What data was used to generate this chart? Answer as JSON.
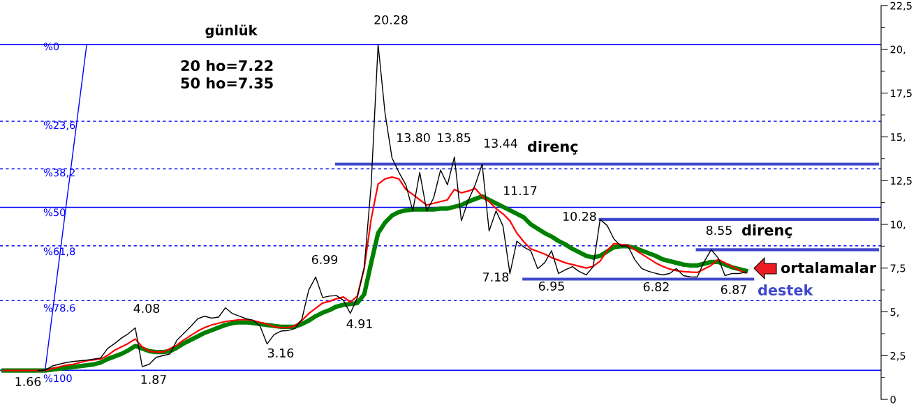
{
  "chart_data": {
    "type": "line",
    "title": "günlük",
    "categories": [
      null,
      null,
      null,
      null,
      null,
      null,
      null,
      null,
      null,
      null,
      null,
      null,
      null,
      null,
      null,
      null,
      null,
      null,
      null,
      null,
      null,
      null,
      null,
      null,
      null,
      null,
      null,
      null,
      null,
      null,
      null,
      null,
      null,
      null,
      null,
      null,
      null,
      null,
      null,
      null,
      null,
      null,
      null,
      null,
      null,
      null,
      null,
      null,
      null,
      null,
      null,
      null,
      null,
      null,
      null,
      null,
      null,
      null,
      null,
      null,
      null,
      null,
      null,
      null,
      null,
      null,
      null,
      null,
      null,
      null,
      null,
      null,
      null,
      null,
      null,
      null,
      null,
      null,
      null,
      null,
      null,
      null,
      null,
      null,
      null,
      null,
      null,
      null,
      null,
      null,
      null,
      null,
      null,
      null,
      null,
      null,
      null,
      null,
      null,
      null,
      null,
      null,
      null,
      null,
      null,
      null,
      null,
      null,
      null,
      null,
      null,
      null,
      null,
      null,
      null,
      null,
      null,
      null,
      null,
      null,
      null,
      null,
      null,
      null,
      null,
      null,
      null
    ],
    "annotations": [
      "%0",
      "%23,6",
      "%38,2",
      "%50",
      "%61,8",
      "%78.6",
      "%100",
      "20 ho=7.22",
      "50 ho=7.35",
      "direnç",
      "direnç",
      "ortalamalar",
      "destek",
      "1.66",
      "4.08",
      "1.87",
      "3.16",
      "6.99",
      "4.91",
      "20.28",
      "13.80",
      "13.85",
      "13.44",
      "11.17",
      "7.18",
      "6.95",
      "10.28",
      "6.82",
      "8.55",
      "6.87"
    ],
    "ylim": [
      0,
      22.5
    ],
    "yticks": [
      0,
      {
        "value": 1.25,
        "label": null
      },
      {
        "value": 2.5,
        "label": "2,5"
      },
      {
        "value": 3.75,
        "label": null
      },
      {
        "value": 5,
        "label": "5,"
      },
      {
        "value": 6.25,
        "label": null
      },
      {
        "value": 7.5,
        "label": "7,5"
      },
      {
        "value": 8.75,
        "label": null
      },
      {
        "value": 10,
        "label": "10,"
      },
      {
        "value": 11.25,
        "label": null
      },
      {
        "value": 12.5,
        "label": "12,5"
      },
      {
        "value": 13.75,
        "label": null
      },
      {
        "value": 15,
        "label": "15,"
      },
      {
        "value": 16.25,
        "label": null
      },
      {
        "value": 17.5,
        "label": "17,5"
      },
      {
        "value": 18.75,
        "label": null
      },
      {
        "value": 20,
        "label": "20,"
      },
      {
        "value": 21.25,
        "label": null
      },
      {
        "value": 22.5,
        "label": "22,5"
      }
    ],
    "tick_labels": "y",
    "ref_lines": [
      {
        "axis": "y",
        "value": 20.28,
        "color": "#0000ff",
        "line_style": "solid"
      },
      {
        "axis": "y",
        "value": 15.89,
        "color": "#0000ff",
        "line_style": "dashed"
      },
      {
        "axis": "y",
        "value": 13.17,
        "color": "#0000ff",
        "line_style": "dashed"
      },
      {
        "axis": "y",
        "value": 10.97,
        "color": "#0000ff",
        "line_style": "solid"
      },
      {
        "axis": "y",
        "value": 8.77,
        "color": "#0000ff",
        "line_style": "dashed"
      },
      {
        "axis": "y",
        "value": 5.64,
        "color": "#0000ff",
        "line_style": "dashed"
      },
      {
        "axis": "y",
        "value": 1.66,
        "color": "#0000ff",
        "line_style": "solid"
      }
    ],
    "series": [
      {
        "color": "#0000ff",
        "values": [
          null,
          null,
          null,
          null,
          null,
          null,
          1.66,
          4.76,
          7.87,
          10.97,
          14.07,
          17.18,
          20.28,
          null,
          null,
          null,
          null,
          null,
          null,
          null,
          null,
          null,
          null,
          null,
          null,
          null,
          null,
          null,
          null,
          null,
          null,
          null,
          null,
          null,
          null,
          null,
          null,
          null,
          null,
          null,
          null,
          null,
          null,
          null,
          null,
          null,
          null,
          null,
          null,
          null,
          null,
          null,
          null,
          null,
          null,
          null,
          null,
          null,
          null,
          null,
          null,
          null,
          null,
          null,
          null,
          null,
          null,
          null,
          null,
          null,
          null,
          null,
          null,
          null,
          null,
          null,
          null,
          null,
          null,
          null,
          null,
          null,
          null,
          null,
          null,
          null,
          null,
          null,
          null,
          null,
          null,
          null,
          null,
          null,
          null,
          null,
          null,
          null,
          null,
          null,
          null,
          null,
          null,
          null,
          null,
          null,
          null,
          null,
          null,
          null,
          null,
          null,
          null,
          null,
          null,
          null,
          null,
          null,
          null,
          null,
          null,
          null,
          null,
          null,
          null,
          null,
          null
        ]
      },
      {
        "color": "#000000",
        "values": [
          null,
          null,
          null,
          null,
          null,
          1.65,
          1.66,
          1.9,
          2.0,
          2.1,
          2.16,
          2.2,
          2.24,
          2.3,
          2.36,
          2.9,
          3.18,
          3.5,
          3.75,
          4.08,
          1.87,
          2.0,
          2.4,
          2.5,
          2.6,
          3.38,
          3.77,
          4.17,
          4.6,
          4.75,
          4.64,
          4.7,
          5.23,
          4.9,
          4.75,
          4.6,
          4.52,
          4.17,
          3.16,
          3.7,
          3.9,
          3.93,
          4.05,
          4.56,
          6.25,
          6.99,
          5.82,
          5.9,
          5.93,
          5.66,
          4.91,
          5.8,
          7.54,
          12.26,
          20.28,
          16.35,
          13.8,
          12.97,
          12.26,
          10.77,
          12.97,
          10.77,
          11.5,
          13.1,
          12.26,
          13.85,
          10.2,
          11.36,
          12.26,
          13.44,
          9.62,
          10.77,
          9.9,
          7.18,
          9.04,
          8.7,
          8.49,
          7.47,
          7.8,
          8.49,
          7.19,
          7.4,
          7.58,
          7.3,
          7.11,
          7.58,
          10.28,
          9.94,
          9.16,
          8.76,
          8.76,
          7.98,
          7.47,
          7.31,
          7.2,
          7.11,
          7.19,
          7.47,
          7.07,
          7.0,
          6.99,
          7.86,
          8.55,
          8.09,
          7.07,
          7.19,
          7.19,
          7.27,
          null,
          null,
          null,
          null,
          null,
          null,
          null,
          null,
          null,
          null,
          null,
          null,
          null,
          null,
          null,
          null,
          null,
          null,
          null
        ]
      },
      {
        "color": "#008000",
        "values": [
          1.65,
          1.65,
          1.65,
          1.65,
          1.65,
          1.65,
          1.65,
          1.7,
          1.75,
          1.8,
          1.85,
          1.9,
          1.95,
          2.0,
          2.1,
          2.3,
          2.45,
          2.6,
          2.8,
          3.05,
          2.9,
          2.75,
          2.7,
          2.7,
          2.75,
          2.95,
          3.2,
          3.4,
          3.6,
          3.8,
          3.95,
          4.1,
          4.25,
          4.35,
          4.4,
          4.4,
          4.35,
          4.3,
          4.25,
          4.2,
          4.15,
          4.15,
          4.15,
          4.3,
          4.5,
          4.75,
          4.95,
          5.1,
          5.3,
          5.4,
          5.45,
          5.5,
          6.0,
          7.8,
          9.5,
          10.1,
          10.5,
          10.7,
          10.8,
          10.85,
          10.85,
          10.85,
          10.85,
          10.9,
          10.9,
          11.0,
          11.1,
          11.3,
          11.45,
          11.6,
          11.4,
          11.2,
          11.0,
          10.8,
          10.6,
          10.4,
          10.0,
          9.75,
          9.5,
          9.3,
          9.05,
          8.85,
          8.6,
          8.4,
          8.2,
          8.1,
          8.2,
          8.45,
          8.7,
          8.75,
          8.75,
          8.65,
          8.5,
          8.35,
          8.2,
          8.0,
          7.9,
          7.8,
          7.7,
          7.65,
          7.65,
          7.75,
          7.85,
          7.85,
          7.7,
          7.55,
          7.45,
          7.35,
          null,
          null,
          null,
          null,
          null,
          null,
          null,
          null,
          null,
          null,
          null,
          null,
          null,
          null,
          null,
          null,
          null,
          null,
          null
        ]
      },
      {
        "color": "#ff0000",
        "values": [
          1.65,
          1.65,
          1.65,
          1.65,
          1.65,
          1.65,
          1.65,
          1.75,
          1.85,
          1.95,
          2.0,
          2.1,
          2.2,
          2.25,
          2.3,
          2.5,
          2.8,
          3.0,
          3.2,
          3.45,
          3.0,
          2.75,
          2.7,
          2.7,
          2.9,
          3.1,
          3.4,
          3.65,
          3.9,
          4.1,
          4.25,
          4.35,
          4.45,
          4.5,
          4.55,
          4.55,
          4.5,
          4.4,
          4.3,
          4.15,
          4.1,
          4.1,
          4.2,
          4.5,
          4.9,
          5.2,
          5.5,
          5.6,
          5.75,
          5.85,
          5.55,
          5.9,
          7.5,
          10.3,
          12.3,
          12.6,
          12.7,
          12.6,
          12.0,
          11.7,
          11.4,
          11.1,
          11.2,
          11.3,
          11.4,
          12.0,
          11.8,
          11.9,
          12.05,
          11.6,
          11.3,
          10.9,
          10.6,
          10.2,
          9.5,
          9.0,
          8.6,
          8.45,
          8.3,
          8.1,
          7.95,
          7.8,
          7.7,
          7.6,
          7.5,
          7.6,
          7.9,
          8.5,
          8.9,
          8.85,
          8.8,
          8.55,
          8.3,
          8.05,
          7.8,
          7.6,
          7.45,
          7.35,
          7.3,
          7.27,
          7.25,
          7.45,
          7.65,
          8.0,
          7.8,
          7.6,
          7.4,
          7.22,
          null,
          null,
          null,
          null,
          null,
          null,
          null,
          null,
          null,
          null,
          null,
          null,
          null,
          null,
          null,
          null,
          null,
          null,
          null
        ]
      },
      {
        "color": "#3f48cc",
        "values": [
          null,
          null,
          null,
          null,
          null,
          null,
          null,
          null,
          null,
          null,
          null,
          null,
          null,
          null,
          null,
          null,
          null,
          null,
          null,
          null,
          null,
          null,
          null,
          null,
          null,
          null,
          null,
          null,
          null,
          null,
          null,
          null,
          null,
          null,
          null,
          null,
          null,
          null,
          null,
          null,
          null,
          null,
          null,
          null,
          null,
          null,
          null,
          null,
          13.44,
          13.44,
          13.44,
          13.44,
          13.44,
          13.44,
          13.44,
          13.44,
          13.44,
          13.44,
          13.44,
          13.44,
          13.44,
          13.44,
          13.44,
          13.44,
          13.44,
          13.44,
          13.44,
          13.44,
          13.44,
          13.44,
          13.44,
          13.44,
          13.44,
          13.44,
          13.44,
          13.44,
          13.44,
          13.44,
          13.44,
          13.44,
          13.44,
          13.44,
          13.44,
          13.44,
          13.44,
          13.44,
          13.44,
          13.44,
          13.44,
          13.44,
          13.44,
          13.44,
          13.44,
          13.44,
          13.44,
          13.44,
          13.44,
          13.44,
          13.44,
          13.44,
          13.44,
          13.44,
          13.44,
          13.44,
          13.44,
          13.44,
          13.44,
          13.44,
          13.44,
          13.44,
          13.44,
          13.44,
          13.44,
          13.44,
          13.44,
          13.44,
          13.44,
          13.44,
          13.44,
          13.44,
          13.44,
          13.44,
          13.44,
          13.44,
          13.44,
          13.44,
          13.44
        ]
      },
      {
        "color": "#3f48cc",
        "values": [
          null,
          null,
          null,
          null,
          null,
          null,
          null,
          null,
          null,
          null,
          null,
          null,
          null,
          null,
          null,
          null,
          null,
          null,
          null,
          null,
          null,
          null,
          null,
          null,
          null,
          null,
          null,
          null,
          null,
          null,
          null,
          null,
          null,
          null,
          null,
          null,
          null,
          null,
          null,
          null,
          null,
          null,
          null,
          null,
          null,
          null,
          null,
          null,
          null,
          null,
          null,
          null,
          null,
          null,
          null,
          null,
          null,
          null,
          null,
          null,
          null,
          null,
          null,
          null,
          null,
          null,
          null,
          null,
          null,
          null,
          null,
          null,
          null,
          null,
          null,
          null,
          null,
          null,
          null,
          null,
          null,
          null,
          null,
          null,
          null,
          null,
          10.28,
          10.28,
          10.28,
          10.28,
          10.28,
          10.28,
          10.28,
          10.28,
          10.28,
          10.28,
          10.28,
          10.28,
          10.28,
          10.28,
          10.28,
          10.28,
          10.28,
          10.28,
          10.28,
          10.28,
          10.28,
          10.28,
          10.28,
          10.28,
          10.28,
          10.28,
          10.28,
          10.28,
          10.28,
          10.28,
          10.28,
          10.28,
          10.28,
          10.28,
          10.28,
          10.28,
          10.28,
          10.28,
          10.28,
          10.28,
          10.28
        ]
      },
      {
        "color": "#3f48cc",
        "values": [
          null,
          null,
          null,
          null,
          null,
          null,
          null,
          null,
          null,
          null,
          null,
          null,
          null,
          null,
          null,
          null,
          null,
          null,
          null,
          null,
          null,
          null,
          null,
          null,
          null,
          null,
          null,
          null,
          null,
          null,
          null,
          null,
          null,
          null,
          null,
          null,
          null,
          null,
          null,
          null,
          null,
          null,
          null,
          null,
          null,
          null,
          null,
          null,
          null,
          null,
          null,
          null,
          null,
          null,
          null,
          null,
          null,
          null,
          null,
          null,
          null,
          null,
          null,
          null,
          null,
          null,
          null,
          null,
          null,
          null,
          null,
          null,
          null,
          null,
          null,
          null,
          null,
          null,
          null,
          null,
          null,
          null,
          null,
          null,
          null,
          null,
          null,
          null,
          null,
          null,
          null,
          null,
          null,
          null,
          null,
          null,
          null,
          null,
          null,
          null,
          8.55,
          8.55,
          8.55,
          8.55,
          8.55,
          8.55,
          8.55,
          8.55,
          8.55,
          8.55,
          8.55,
          8.55,
          8.55,
          8.55,
          8.55,
          8.55,
          8.55,
          8.55,
          8.55,
          8.55,
          8.55,
          8.55,
          8.55,
          8.55,
          8.55,
          8.55,
          8.55
        ]
      },
      {
        "color": "#3f48cc",
        "values": [
          null,
          null,
          null,
          null,
          null,
          null,
          null,
          null,
          null,
          null,
          null,
          null,
          null,
          null,
          null,
          null,
          null,
          null,
          null,
          null,
          null,
          null,
          null,
          null,
          null,
          null,
          null,
          null,
          null,
          null,
          null,
          null,
          null,
          null,
          null,
          null,
          null,
          null,
          null,
          null,
          null,
          null,
          null,
          null,
          null,
          null,
          null,
          null,
          null,
          null,
          null,
          null,
          null,
          null,
          null,
          null,
          null,
          null,
          null,
          null,
          null,
          null,
          null,
          null,
          null,
          null,
          null,
          null,
          null,
          null,
          null,
          null,
          null,
          null,
          null,
          6.87,
          6.87,
          6.87,
          6.87,
          6.87,
          6.87,
          6.87,
          6.87,
          6.87,
          6.87,
          6.87,
          6.87,
          6.87,
          6.87,
          6.87,
          6.87,
          6.87,
          6.87,
          6.87,
          6.87,
          6.87,
          6.87,
          6.87,
          6.87,
          6.87,
          6.87,
          6.87,
          6.87,
          6.87,
          6.87,
          6.87,
          6.87,
          6.87,
          6.87,
          null,
          null,
          null,
          null,
          null,
          null,
          null,
          null,
          null,
          null,
          null,
          null,
          null,
          null,
          null,
          null,
          null,
          null
        ]
      }
    ]
  }
}
